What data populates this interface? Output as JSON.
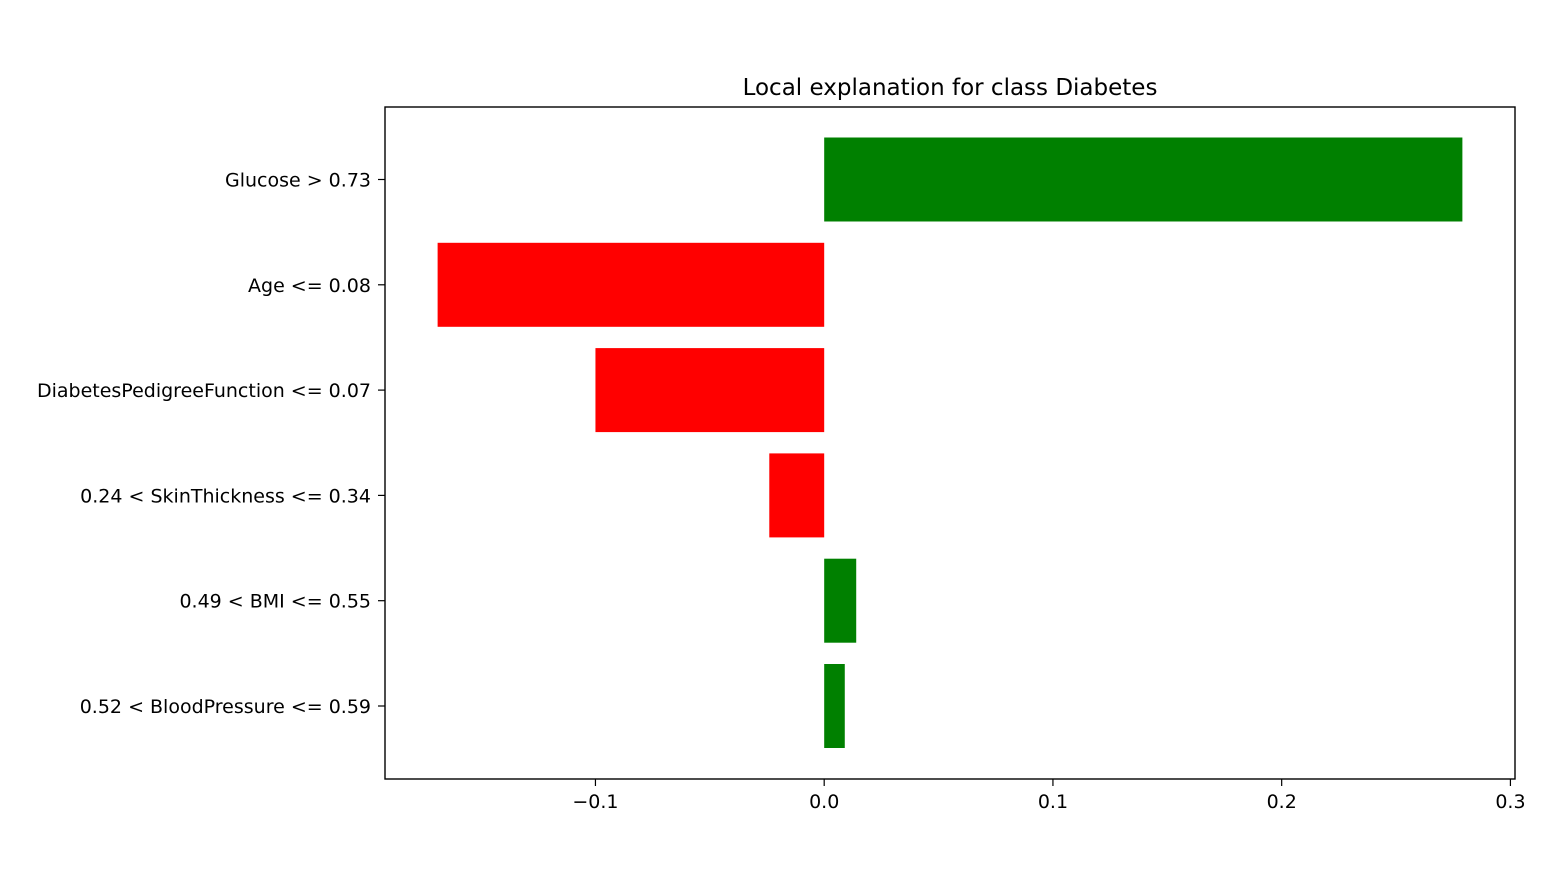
{
  "chart_data": {
    "type": "bar",
    "orientation": "horizontal",
    "title": "Local explanation for class Diabetes",
    "xlabel": "",
    "ylabel": "",
    "categories": [
      "Glucose > 0.73",
      "Age <= 0.08",
      "DiabetesPedigreeFunction <= 0.07",
      "0.24 < SkinThickness <= 0.34",
      "0.49 < BMI <= 0.55",
      "0.52 < BloodPressure <= 0.59"
    ],
    "values": [
      0.279,
      -0.169,
      -0.1,
      -0.024,
      0.014,
      0.009
    ],
    "xlim": [
      -0.192,
      0.302
    ],
    "xticks": [
      {
        "value": -0.1,
        "label": "−0.1"
      },
      {
        "value": 0.0,
        "label": "0.0"
      },
      {
        "value": 0.1,
        "label": "0.1"
      },
      {
        "value": 0.2,
        "label": "0.2"
      },
      {
        "value": 0.3,
        "label": "0.3"
      }
    ],
    "positive_color": "#008000",
    "negative_color": "#ff0000",
    "grid": false,
    "legend": "none"
  }
}
